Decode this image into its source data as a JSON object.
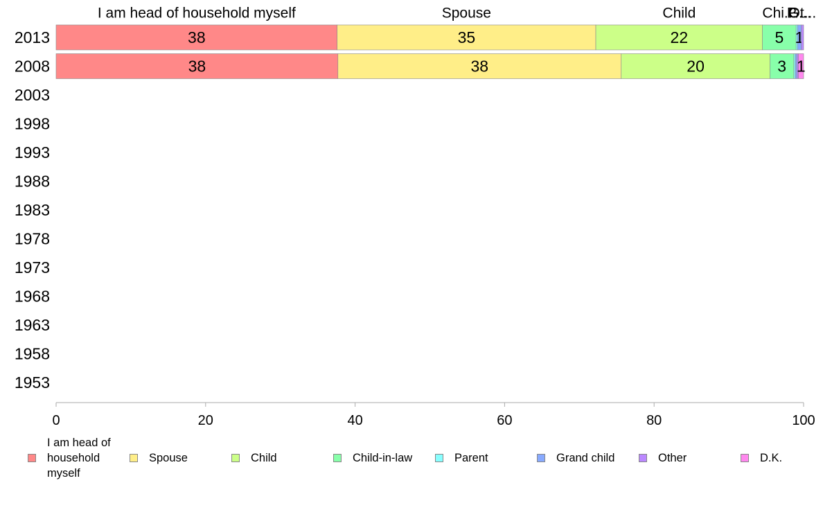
{
  "chart_data": {
    "type": "bar",
    "orientation": "horizontal",
    "stacked": true,
    "categories": [
      "2013",
      "2008",
      "2003",
      "1998",
      "1993",
      "1988",
      "1983",
      "1978",
      "1973",
      "1968",
      "1963",
      "1958",
      "1953"
    ],
    "series": [
      {
        "name": "I am head of household myself",
        "color": "#ff8888",
        "values": [
          37.6,
          37.7,
          null,
          null,
          null,
          null,
          null,
          null,
          null,
          null,
          null,
          null,
          null
        ]
      },
      {
        "name": "Spouse",
        "color": "#ffee88",
        "values": [
          34.6,
          37.9,
          null,
          null,
          null,
          null,
          null,
          null,
          null,
          null,
          null,
          null,
          null
        ]
      },
      {
        "name": "Child",
        "color": "#ccff88",
        "values": [
          22.3,
          19.9,
          null,
          null,
          null,
          null,
          null,
          null,
          null,
          null,
          null,
          null,
          null
        ]
      },
      {
        "name": "Child-in-law",
        "color": "#88ffaa",
        "values": [
          4.5,
          3.2,
          null,
          null,
          null,
          null,
          null,
          null,
          null,
          null,
          null,
          null,
          null
        ]
      },
      {
        "name": "Parent",
        "color": "#88ffff",
        "values": [
          0.2,
          0.2,
          null,
          null,
          null,
          null,
          null,
          null,
          null,
          null,
          null,
          null,
          null
        ]
      },
      {
        "name": "Grand child",
        "color": "#88aaff",
        "values": [
          0.5,
          0.2,
          null,
          null,
          null,
          null,
          null,
          null,
          null,
          null,
          null,
          null,
          null
        ]
      },
      {
        "name": "Other",
        "color": "#bb88ff",
        "values": [
          0.3,
          0.2,
          null,
          null,
          null,
          null,
          null,
          null,
          null,
          null,
          null,
          null,
          null
        ]
      },
      {
        "name": "D.K.",
        "color": "#ff88ee",
        "values": [
          0.0,
          0.7,
          null,
          null,
          null,
          null,
          null,
          null,
          null,
          null,
          null,
          null,
          null
        ]
      }
    ],
    "data_labels": [
      [
        "38",
        "35",
        "22",
        "5",
        "",
        "1",
        "",
        ""
      ],
      [
        "38",
        "38",
        "20",
        "3",
        "",
        "",
        "",
        "1"
      ]
    ],
    "top_labels": [
      "I am head of household myself",
      "Spouse",
      "Child",
      "Child-in-law",
      "Parent",
      "Grand child",
      "Other",
      "D.K."
    ],
    "top_label_texts": [
      "I am head of household myself",
      "Spouse",
      "Child",
      "Chi...",
      "P...",
      "G...",
      "Ot...",
      ""
    ],
    "xlim": [
      0,
      100
    ],
    "x_ticks": [
      "0",
      "20",
      "40",
      "60",
      "80",
      "100"
    ],
    "title": "",
    "xlabel": "",
    "ylabel": "",
    "grid": false,
    "legend_position": "bottom"
  },
  "legend": {
    "items": [
      {
        "label": "I am head of household myself",
        "color": "#ff8888"
      },
      {
        "label": "Spouse",
        "color": "#ffee88"
      },
      {
        "label": "Child",
        "color": "#ccff88"
      },
      {
        "label": "Child-in-law",
        "color": "#88ffaa"
      },
      {
        "label": "Parent",
        "color": "#88ffff"
      },
      {
        "label": "Grand child",
        "color": "#88aaff"
      },
      {
        "label": "Other",
        "color": "#bb88ff"
      },
      {
        "label": "D.K.",
        "color": "#ff88ee"
      }
    ]
  }
}
